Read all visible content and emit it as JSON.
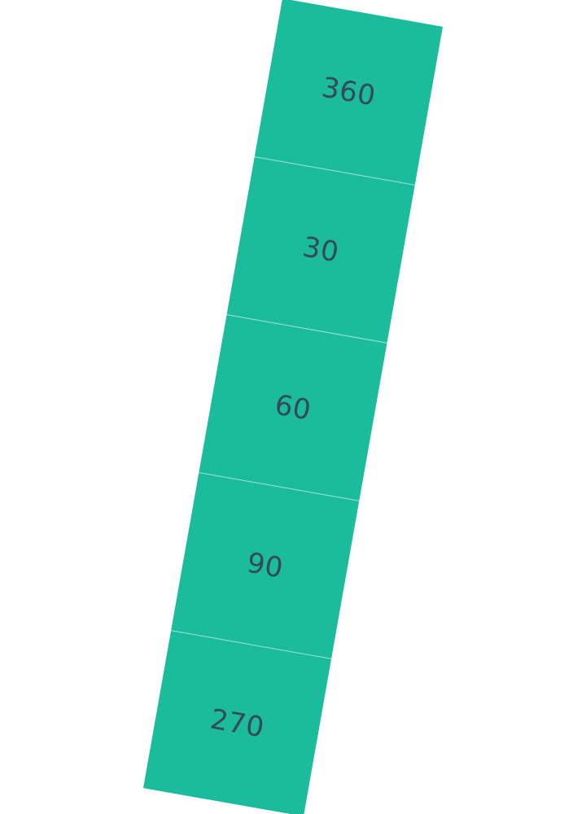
{
  "colors": {
    "tile_fill": "#1abc9c",
    "label_text": "#34495e",
    "background": "#ffffff"
  },
  "tiles": [
    {
      "label": "360"
    },
    {
      "label": "30"
    },
    {
      "label": "60"
    },
    {
      "label": "90"
    },
    {
      "label": "270"
    }
  ]
}
